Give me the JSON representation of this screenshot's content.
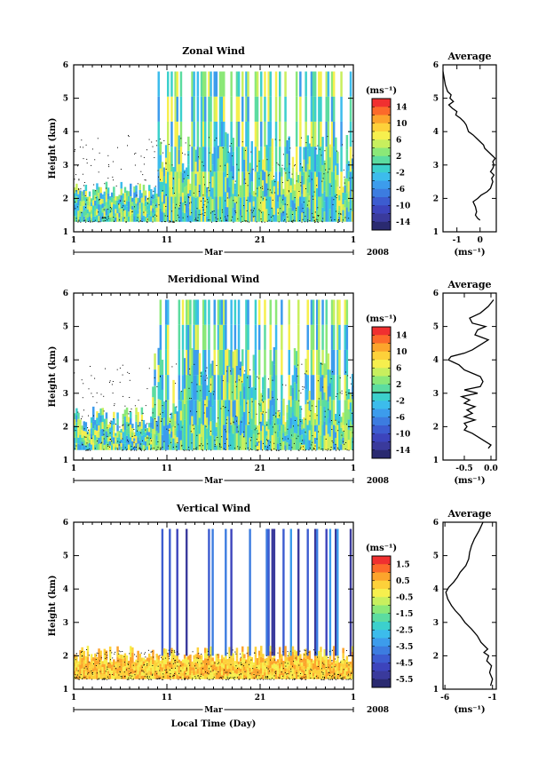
{
  "xlabel": "Local Time (Day)",
  "month_label": "Mar",
  "year_label": "2008",
  "x_ticks": [
    "1",
    "11",
    "21",
    "1"
  ],
  "unit_label": "(ms⁻¹)",
  "chart_data": [
    {
      "type": "heatmap",
      "title": "Zonal Wind",
      "ylabel": "Height (km)",
      "xlabel": "",
      "y_ticks": [
        "1",
        "2",
        "3",
        "4",
        "5",
        "6"
      ],
      "ylim": [
        1,
        6
      ],
      "colorbar": {
        "range": [
          -16,
          16
        ],
        "labels": [
          "14",
          "10",
          "6",
          "2",
          "-2",
          "-6",
          "-10",
          "-14"
        ],
        "colors": [
          "#f03030",
          "#fc6a2a",
          "#fca42c",
          "#fdd13a",
          "#f6ef4e",
          "#c8ef5e",
          "#8be878",
          "#5cdca0",
          "#3cd0cc",
          "#3cbcec",
          "#3c9cec",
          "#3c7ce0",
          "#3c5cd0",
          "#3c44bc",
          "#3a3a9c",
          "#2a2a70"
        ],
        "zero_line": true
      }
    },
    {
      "type": "line",
      "title": "Average",
      "xlabel": "(ms⁻¹)",
      "x_ticks": [
        "-1",
        "0"
      ],
      "xlim": [
        -1.6,
        0.7
      ],
      "y_ticks": [
        "1",
        "2",
        "3",
        "4",
        "5",
        "6"
      ],
      "ylim": [
        1,
        6
      ],
      "series": [
        {
          "x": [
            0.0,
            -0.1,
            -0.2,
            -0.15,
            -0.2,
            -0.3,
            -0.1,
            0.05,
            0.3,
            0.45,
            0.5,
            0.55,
            0.5,
            0.6,
            0.45,
            0.55,
            0.6,
            0.55,
            0.65,
            0.5,
            0.35,
            0.2,
            0.15,
            0.0,
            -0.15,
            -0.3,
            -0.5,
            -0.55,
            -0.6,
            -0.7,
            -0.85,
            -1.05,
            -1.0,
            -1.2,
            -1.35,
            -1.15,
            -1.3,
            -1.25,
            -1.4,
            -1.5,
            -1.55,
            -1.6
          ],
          "y": [
            1.35,
            1.4,
            1.5,
            1.6,
            1.75,
            1.9,
            2.0,
            2.1,
            2.2,
            2.3,
            2.4,
            2.5,
            2.6,
            2.7,
            2.8,
            2.9,
            3.0,
            3.1,
            3.2,
            3.3,
            3.4,
            3.5,
            3.6,
            3.7,
            3.8,
            3.9,
            4.0,
            4.1,
            4.2,
            4.3,
            4.4,
            4.5,
            4.6,
            4.7,
            4.8,
            4.9,
            5.0,
            5.1,
            5.2,
            5.4,
            5.6,
            5.8
          ]
        }
      ]
    },
    {
      "type": "heatmap",
      "title": "Meridional Wind",
      "ylabel": "Height (km)",
      "xlabel": "",
      "y_ticks": [
        "1",
        "2",
        "3",
        "4",
        "5",
        "6"
      ],
      "ylim": [
        1,
        6
      ],
      "colorbar": {
        "range": [
          -16,
          16
        ],
        "labels": [
          "14",
          "10",
          "6",
          "2",
          "-2",
          "-6",
          "-10",
          "-14"
        ],
        "colors": [
          "#f03030",
          "#fc6a2a",
          "#fca42c",
          "#fdd13a",
          "#f6ef4e",
          "#c8ef5e",
          "#8be878",
          "#5cdca0",
          "#3cd0cc",
          "#3cbcec",
          "#3c9cec",
          "#3c7ce0",
          "#3c5cd0",
          "#3c44bc",
          "#3a3a9c",
          "#2a2a70"
        ],
        "zero_line": true
      }
    },
    {
      "type": "line",
      "title": "Average",
      "xlabel": "(ms⁻¹)",
      "x_ticks": [
        "-0.5",
        "0.0"
      ],
      "xlim": [
        -0.9,
        0.1
      ],
      "y_ticks": [
        "1",
        "2",
        "3",
        "4",
        "5",
        "6"
      ],
      "ylim": [
        1,
        6
      ],
      "series": [
        {
          "x": [
            -0.05,
            0.0,
            -0.1,
            -0.2,
            -0.35,
            -0.5,
            -0.45,
            -0.5,
            -0.3,
            -0.5,
            -0.35,
            -0.45,
            -0.3,
            -0.5,
            -0.4,
            -0.55,
            -0.25,
            -0.5,
            -0.2,
            -0.15,
            -0.2,
            -0.35,
            -0.5,
            -0.6,
            -0.8,
            -0.75,
            -0.5,
            -0.35,
            -0.2,
            -0.05,
            -0.3,
            -0.25,
            -0.1,
            -0.35,
            -0.4,
            -0.2,
            -0.05,
            0.05
          ],
          "y": [
            1.35,
            1.45,
            1.55,
            1.65,
            1.8,
            1.9,
            2.0,
            2.1,
            2.2,
            2.3,
            2.4,
            2.5,
            2.6,
            2.7,
            2.8,
            2.9,
            3.0,
            3.1,
            3.2,
            3.35,
            3.5,
            3.6,
            3.7,
            3.85,
            4.0,
            4.1,
            4.2,
            4.3,
            4.45,
            4.6,
            4.75,
            4.9,
            5.0,
            5.1,
            5.25,
            5.4,
            5.6,
            5.8
          ]
        }
      ]
    },
    {
      "type": "heatmap",
      "title": "Vertical Wind",
      "ylabel": "Height (km)",
      "xlabel": "Local Time (Day)",
      "y_ticks": [
        "1",
        "2",
        "3",
        "4",
        "5",
        "6"
      ],
      "ylim": [
        1,
        6
      ],
      "colorbar": {
        "range": [
          -6.5,
          2.0
        ],
        "labels": [
          "1.5",
          "0.5",
          "-0.5",
          "-1.5",
          "-2.5",
          "-3.5",
          "-4.5",
          "-5.5"
        ],
        "colors": [
          "#f03030",
          "#fc6a2a",
          "#fca42c",
          "#fdd13a",
          "#f6ef4e",
          "#c8ef5e",
          "#8be878",
          "#5cdca0",
          "#3cd0cc",
          "#3cbcec",
          "#3c9cec",
          "#3c7ce0",
          "#3c5cd0",
          "#3c44bc",
          "#3a3a9c",
          "#2a2a70"
        ],
        "zero_line": false
      }
    },
    {
      "type": "line",
      "title": "Average",
      "xlabel": "(ms⁻¹)",
      "x_ticks": [
        "-6",
        "-1"
      ],
      "xlim": [
        -6.2,
        -0.6
      ],
      "y_ticks": [
        "1",
        "2",
        "3",
        "4",
        "5",
        "6"
      ],
      "ylim": [
        1,
        6
      ],
      "series": [
        {
          "x": [
            -1.2,
            -1.0,
            -1.3,
            -1.1,
            -1.6,
            -1.4,
            -1.9,
            -1.5,
            -2.2,
            -2.6,
            -3.2,
            -3.9,
            -4.4,
            -4.9,
            -5.3,
            -5.7,
            -5.9,
            -5.6,
            -5.1,
            -4.7,
            -4.4,
            -3.8,
            -3.5,
            -3.4,
            -3.2,
            -2.9,
            -2.4,
            -2.0
          ],
          "y": [
            1.1,
            1.3,
            1.5,
            1.7,
            1.85,
            2.0,
            2.1,
            2.2,
            2.4,
            2.6,
            2.8,
            3.0,
            3.2,
            3.35,
            3.5,
            3.7,
            3.9,
            4.05,
            4.2,
            4.35,
            4.5,
            4.7,
            4.9,
            5.1,
            5.3,
            5.5,
            5.75,
            6.0
          ]
        }
      ]
    }
  ]
}
